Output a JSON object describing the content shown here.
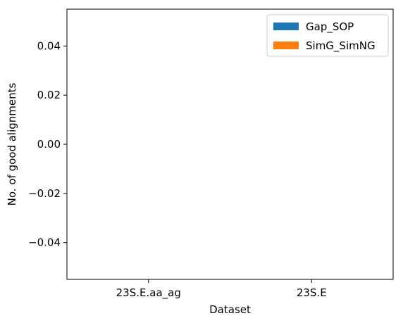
{
  "chart_data": {
    "type": "bar",
    "title": "",
    "xlabel": "Dataset",
    "ylabel": "No. of good alignments",
    "categories": [
      "23S.E.aa_ag",
      "23S.E"
    ],
    "series": [
      {
        "name": "Gap_SOP",
        "color": "#1f77b4",
        "values": [
          0,
          0
        ]
      },
      {
        "name": "SimG_SimNG",
        "color": "#ff7f0e",
        "values": [
          0,
          0
        ]
      }
    ],
    "ylim": [
      -0.055,
      0.055
    ],
    "yticks": [
      0.04,
      0.02,
      0.0,
      -0.02,
      -0.04
    ],
    "ytick_labels": [
      "0.04",
      "0.02",
      "0.00",
      "−0.02",
      "−0.04"
    ],
    "legend_position": "top-right",
    "grid": false
  }
}
